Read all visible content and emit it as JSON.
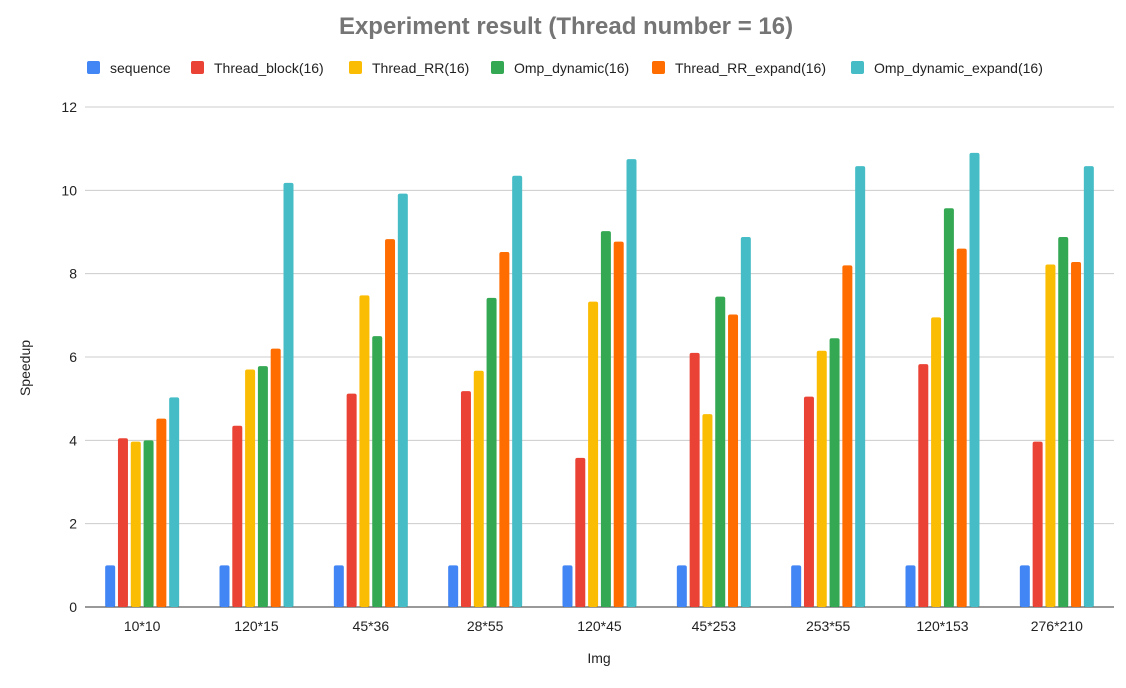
{
  "chart_data": {
    "type": "bar",
    "title": "Experiment result (Thread number = 16)",
    "xlabel": "Img",
    "ylabel": "Speedup",
    "ylim": [
      0,
      12
    ],
    "yticks": [
      "0",
      "2",
      "4",
      "6",
      "8",
      "10",
      "12"
    ],
    "grid": true,
    "legend_position": "top",
    "categories": [
      "10*10",
      "120*15",
      "45*36",
      "28*55",
      "120*45",
      "45*253",
      "253*55",
      "120*153",
      "276*210"
    ],
    "series": [
      {
        "name": "sequence",
        "color": "#4285F4",
        "values": [
          1,
          1,
          1,
          1,
          1,
          1,
          1,
          1,
          1
        ]
      },
      {
        "name": "Thread_block(16)",
        "color": "#EA4335",
        "values": [
          4.05,
          4.35,
          5.12,
          5.18,
          3.58,
          6.1,
          5.05,
          5.83,
          3.97
        ]
      },
      {
        "name": "Thread_RR(16)",
        "color": "#FBBC04",
        "values": [
          3.97,
          5.7,
          7.48,
          5.67,
          7.33,
          4.63,
          6.15,
          6.95,
          8.22
        ]
      },
      {
        "name": "Omp_dynamic(16)",
        "color": "#34A853",
        "values": [
          4.0,
          5.78,
          6.5,
          7.42,
          9.02,
          7.45,
          6.45,
          9.57,
          8.88
        ]
      },
      {
        "name": "Thread_RR_expand(16)",
        "color": "#FF6D01",
        "values": [
          4.52,
          6.2,
          8.83,
          8.52,
          8.77,
          7.02,
          8.2,
          8.6,
          8.28
        ]
      },
      {
        "name": "Omp_dynamic_expand(16)",
        "color": "#46BDC6",
        "values": [
          5.03,
          10.18,
          9.92,
          10.35,
          10.75,
          8.88,
          10.58,
          10.9,
          10.58
        ]
      }
    ]
  }
}
